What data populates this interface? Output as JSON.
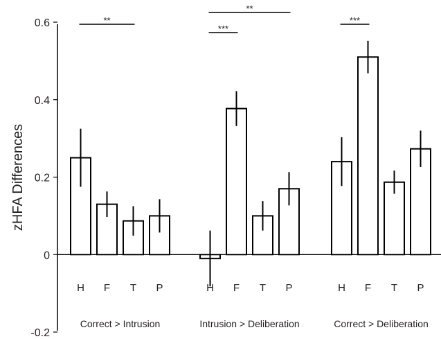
{
  "chart_data": {
    "type": "bar",
    "ylabel": "zHFA Differences",
    "ylim": [
      -0.2,
      0.6
    ],
    "yticks": [
      {
        "value": 0.6,
        "label": "0.6"
      },
      {
        "value": 0.4,
        "label": "0.4"
      },
      {
        "value": 0.2,
        "label": "0.2"
      },
      {
        "value": 0,
        "label": "0"
      },
      {
        "value": -0.2,
        "label": "-0.2"
      }
    ],
    "grid": false,
    "bar_fill": "#ffffff",
    "bar_stroke": "#000000",
    "groups": [
      {
        "label": "Correct > Intrusion",
        "bars": [
          {
            "category": "H",
            "value": 0.25,
            "error": 0.075
          },
          {
            "category": "F",
            "value": 0.13,
            "error": 0.033
          },
          {
            "category": "T",
            "value": 0.087,
            "error": 0.038
          },
          {
            "category": "P",
            "value": 0.1,
            "error": 0.043
          }
        ],
        "significance": [
          {
            "from": 0,
            "to": 2,
            "label": "**"
          }
        ]
      },
      {
        "label": "Intrusion > Deliberation",
        "bars": [
          {
            "category": "H",
            "value": -0.01,
            "error": 0.072
          },
          {
            "category": "F",
            "value": 0.377,
            "error": 0.045
          },
          {
            "category": "T",
            "value": 0.1,
            "error": 0.038
          },
          {
            "category": "P",
            "value": 0.17,
            "error": 0.043
          }
        ],
        "significance": [
          {
            "from": 0,
            "to": 1,
            "label": "***"
          },
          {
            "from": 0,
            "to": 3,
            "label": "**"
          }
        ]
      },
      {
        "label": "Correct > Deliberation",
        "bars": [
          {
            "category": "H",
            "value": 0.24,
            "error": 0.063
          },
          {
            "category": "F",
            "value": 0.51,
            "error": 0.042
          },
          {
            "category": "T",
            "value": 0.187,
            "error": 0.03
          },
          {
            "category": "P",
            "value": 0.273,
            "error": 0.047
          }
        ],
        "significance": [
          {
            "from": 0,
            "to": 1,
            "label": "***"
          }
        ]
      }
    ]
  }
}
